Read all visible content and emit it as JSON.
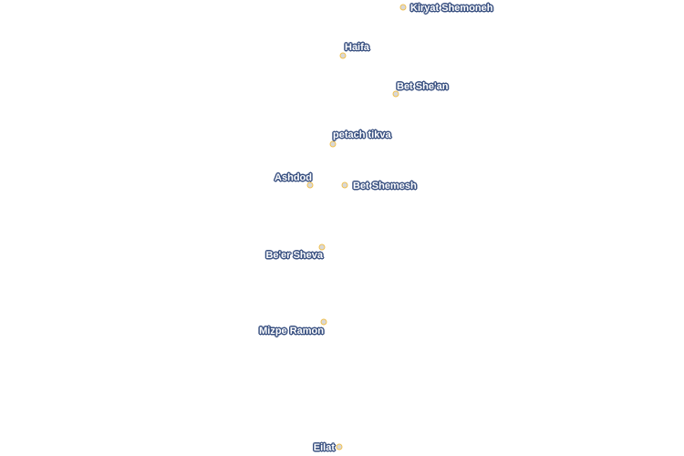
{
  "map": {
    "marker_stroke_color": "#f2c14e",
    "marker_fill_color": "#d8d8d8",
    "label_halo_color": "#3b5282",
    "cities": [
      {
        "name": "Kiryat Shemoneh"
      },
      {
        "name": "Haifa"
      },
      {
        "name": "Bet She'an"
      },
      {
        "name": "petach tikva"
      },
      {
        "name": "Ashdod"
      },
      {
        "name": "Bet Shemesh"
      },
      {
        "name": "Be'er Sheva"
      },
      {
        "name": "Mizpe Ramon"
      },
      {
        "name": "Eilat"
      }
    ]
  }
}
